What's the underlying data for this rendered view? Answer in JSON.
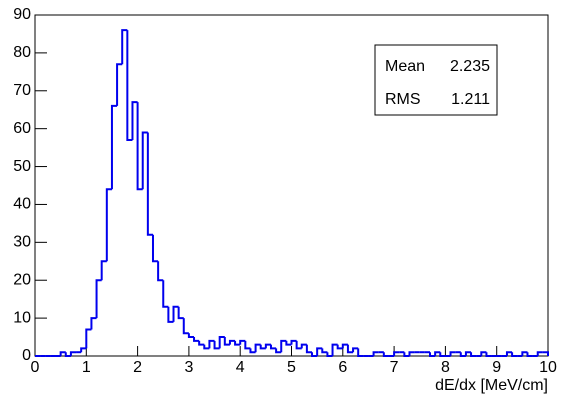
{
  "chart_data": {
    "type": "histogram",
    "x_label": "dE/dx [MeV/cm]",
    "bins": [
      0,
      0.1,
      0.2,
      0.3,
      0.4,
      0.5,
      0.6,
      0.7,
      0.8,
      0.9,
      1,
      1.1,
      1.2,
      1.3,
      1.4,
      1.5,
      1.6,
      1.7,
      1.8,
      1.9,
      2,
      2.1,
      2.2,
      2.3,
      2.4,
      2.5,
      2.6,
      2.7,
      2.8,
      2.9,
      3,
      3.1,
      3.2,
      3.3,
      3.4,
      3.5,
      3.6,
      3.7,
      3.8,
      3.9,
      4,
      4.1,
      4.2,
      4.3,
      4.4,
      4.5,
      4.6,
      4.7,
      4.8,
      4.9,
      5,
      5.1,
      5.2,
      5.3,
      5.4,
      5.5,
      5.6,
      5.7,
      5.8,
      5.9,
      6,
      6.1,
      6.2,
      6.3,
      6.4,
      6.5,
      6.6,
      6.7,
      6.8,
      6.9,
      7,
      7.1,
      7.2,
      7.3,
      7.4,
      7.5,
      7.6,
      7.7,
      7.8,
      7.9,
      8,
      8.1,
      8.2,
      8.3,
      8.4,
      8.5,
      8.6,
      8.7,
      8.8,
      8.9,
      9,
      9.1,
      9.2,
      9.3,
      9.4,
      9.5,
      9.6,
      9.7,
      9.8,
      9.9,
      10
    ],
    "values": [
      0,
      0,
      0,
      0,
      0,
      1,
      0,
      1,
      1,
      2,
      7,
      10,
      20,
      25,
      44,
      66,
      77,
      86,
      57,
      67,
      44,
      59,
      32,
      25,
      20,
      13,
      9,
      13,
      10,
      6,
      5,
      4,
      3,
      2,
      4,
      2,
      5,
      3,
      4,
      3,
      4,
      2,
      1,
      3,
      2,
      3,
      2,
      1,
      4,
      3,
      4,
      2,
      3,
      1,
      0,
      2,
      1,
      0,
      3,
      2,
      3,
      1,
      2,
      0,
      0,
      0,
      1,
      1,
      0,
      0,
      1,
      1,
      0,
      1,
      1,
      1,
      1,
      0,
      1,
      0,
      0,
      1,
      1,
      0,
      1,
      0,
      0,
      1,
      0,
      0,
      0,
      0,
      1,
      0,
      0,
      1,
      0,
      0,
      1,
      1
    ],
    "color": "#0000ee",
    "xlim": [
      0,
      10
    ],
    "xticks": [
      0,
      1,
      2,
      3,
      4,
      5,
      6,
      7,
      8,
      9,
      10
    ],
    "ylim": [
      0,
      90
    ],
    "yticks": [
      0,
      10,
      20,
      30,
      40,
      50,
      60,
      70,
      80,
      90
    ],
    "stats": [
      {
        "label": "Mean",
        "value": 2.235
      },
      {
        "label": "RMS",
        "value": 1.211
      }
    ]
  }
}
